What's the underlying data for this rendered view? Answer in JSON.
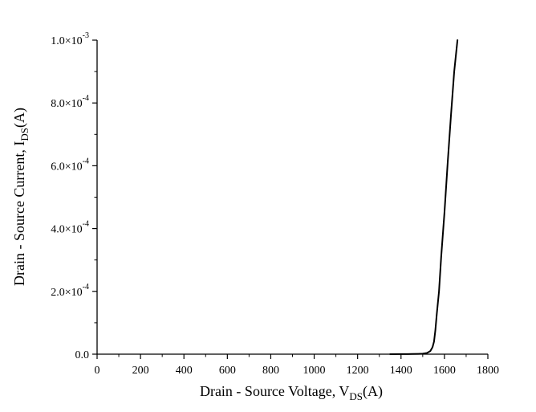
{
  "chart_data": {
    "type": "line",
    "title": "",
    "xlabel": {
      "main": "Drain - Source Voltage, V",
      "sub": "DS",
      "tail": "(A)"
    },
    "ylabel": {
      "main": "Drain - Source Current, I",
      "sub": "DS",
      "tail": "(A)"
    },
    "xlim": [
      0,
      1800
    ],
    "ylim": [
      0,
      0.001
    ],
    "x_ticks": [
      0,
      200,
      400,
      600,
      800,
      1000,
      1200,
      1400,
      1600,
      1800
    ],
    "x_tick_labels": [
      "0",
      "200",
      "400",
      "600",
      "800",
      "1000",
      "1200",
      "1400",
      "1600",
      "1800"
    ],
    "y_ticks": [
      {
        "value": 0,
        "mantissa": "0.0",
        "exp": ""
      },
      {
        "value": 0.0002,
        "mantissa": "2.0×10",
        "exp": "-4"
      },
      {
        "value": 0.0004,
        "mantissa": "4.0×10",
        "exp": "-4"
      },
      {
        "value": 0.0006,
        "mantissa": "6.0×10",
        "exp": "-4"
      },
      {
        "value": 0.0008,
        "mantissa": "8.0×10",
        "exp": "-4"
      },
      {
        "value": 0.001,
        "mantissa": "1.0×10",
        "exp": "-3"
      }
    ],
    "grid": false,
    "series": [
      {
        "color": "#000000",
        "x": [
          1350,
          1400,
          1450,
          1480,
          1500,
          1520,
          1535,
          1545,
          1552,
          1558,
          1565,
          1575,
          1585,
          1600,
          1615,
          1630,
          1645,
          1660
        ],
        "y": [
          0,
          2e-07,
          6e-07,
          1e-06,
          1.5e-06,
          4e-06,
          1e-05,
          2.2e-05,
          4e-05,
          7.5e-05,
          0.00013,
          0.0002,
          0.00031,
          0.00045,
          0.00061,
          0.00076,
          0.0009,
          0.001
        ]
      }
    ]
  }
}
